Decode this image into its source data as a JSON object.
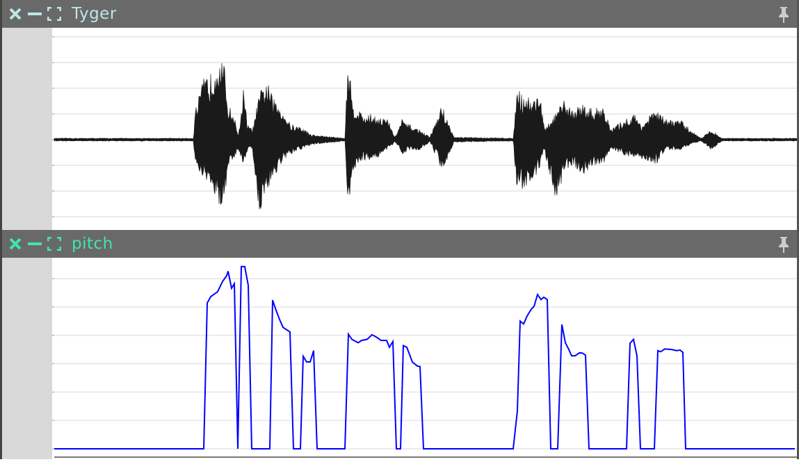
{
  "windows": [
    {
      "title": "Tyger",
      "title_color": "#bfe6e6",
      "icon_color": "#bfe6e6"
    },
    {
      "title": "pitch",
      "title_color": "#3ee8a8",
      "icon_color": "#3ee8a8"
    }
  ],
  "chart_data": [
    {
      "type": "area",
      "title": "Tyger",
      "ylim": [
        -0.17,
        0.215
      ],
      "yticks": [
        "0.2",
        "0.15",
        "0.1",
        "0.05",
        "0",
        "-0.05",
        "-0.1",
        "-0.15"
      ],
      "ytick_values": [
        0.2,
        0.15,
        0.1,
        0.05,
        0,
        -0.05,
        -0.1,
        -0.15
      ],
      "grid": true,
      "color": "#1a1a1a",
      "xlim": [
        0,
        1070
      ],
      "envelope": [
        [
          0,
          0.003,
          -0.003
        ],
        [
          200,
          0.003,
          -0.003
        ],
        [
          203,
          0.06,
          -0.06
        ],
        [
          215,
          0.12,
          -0.08
        ],
        [
          225,
          0.13,
          -0.1
        ],
        [
          237,
          0.18,
          -0.13
        ],
        [
          245,
          0.14,
          -0.12
        ],
        [
          250,
          0.07,
          -0.05
        ],
        [
          258,
          0.05,
          -0.04
        ],
        [
          265,
          0.01,
          -0.02
        ],
        [
          272,
          0.1,
          -0.05
        ],
        [
          278,
          0.03,
          -0.02
        ],
        [
          285,
          0.02,
          -0.02
        ],
        [
          295,
          0.09,
          -0.15
        ],
        [
          305,
          0.12,
          -0.1
        ],
        [
          315,
          0.08,
          -0.08
        ],
        [
          325,
          0.07,
          -0.05
        ],
        [
          340,
          0.03,
          -0.03
        ],
        [
          355,
          0.025,
          -0.02
        ],
        [
          370,
          0.01,
          -0.01
        ],
        [
          418,
          0.003,
          -0.003
        ],
        [
          422,
          0.16,
          -0.15
        ],
        [
          430,
          0.07,
          -0.06
        ],
        [
          445,
          0.05,
          -0.04
        ],
        [
          460,
          0.05,
          -0.04
        ],
        [
          480,
          0.04,
          -0.02
        ],
        [
          490,
          0.005,
          -0.005
        ],
        [
          500,
          0.04,
          -0.03
        ],
        [
          510,
          0.03,
          -0.02
        ],
        [
          525,
          0.02,
          -0.02
        ],
        [
          540,
          0.005,
          -0.005
        ],
        [
          558,
          0.07,
          -0.06
        ],
        [
          565,
          0.04,
          -0.04
        ],
        [
          575,
          0.005,
          -0.005
        ],
        [
          660,
          0.003,
          -0.003
        ],
        [
          665,
          0.1,
          -0.1
        ],
        [
          675,
          0.09,
          -0.1
        ],
        [
          690,
          0.08,
          -0.08
        ],
        [
          698,
          0.1,
          -0.06
        ],
        [
          705,
          0.02,
          -0.02
        ],
        [
          720,
          0.05,
          -0.13
        ],
        [
          735,
          0.08,
          -0.06
        ],
        [
          745,
          0.06,
          -0.05
        ],
        [
          760,
          0.07,
          -0.07
        ],
        [
          775,
          0.06,
          -0.05
        ],
        [
          790,
          0.07,
          -0.05
        ],
        [
          800,
          0.02,
          -0.02
        ],
        [
          820,
          0.04,
          -0.03
        ],
        [
          835,
          0.05,
          -0.04
        ],
        [
          845,
          0.03,
          -0.04
        ],
        [
          865,
          0.06,
          -0.05
        ],
        [
          880,
          0.04,
          -0.02
        ],
        [
          900,
          0.04,
          -0.02
        ],
        [
          915,
          0.02,
          -0.01
        ],
        [
          930,
          0.003,
          -0.003
        ],
        [
          945,
          0.02,
          -0.02
        ],
        [
          960,
          0.003,
          -0.003
        ],
        [
          1070,
          0.003,
          -0.003
        ]
      ]
    },
    {
      "type": "line",
      "title": "pitch",
      "ylim": [
        0,
        335
      ],
      "yticks": [
        "300",
        "250",
        "200",
        "150",
        "100",
        "50",
        "0"
      ],
      "ytick_values": [
        300,
        250,
        200,
        150,
        100,
        50,
        0
      ],
      "grid": true,
      "color": "#0000ff",
      "xlim": [
        0,
        1065
      ],
      "points": [
        [
          0,
          0
        ],
        [
          215,
          0
        ],
        [
          220,
          257
        ],
        [
          225,
          268
        ],
        [
          235,
          277
        ],
        [
          242,
          295
        ],
        [
          248,
          305
        ],
        [
          250,
          313
        ],
        [
          255,
          283
        ],
        [
          259,
          291
        ],
        [
          264,
          0
        ],
        [
          269,
          321
        ],
        [
          274,
          321
        ],
        [
          279,
          288
        ],
        [
          284,
          0
        ],
        [
          310,
          0
        ],
        [
          314,
          262
        ],
        [
          319,
          244
        ],
        [
          324,
          228
        ],
        [
          329,
          214
        ],
        [
          339,
          206
        ],
        [
          344,
          0
        ],
        [
          354,
          0
        ],
        [
          358,
          163
        ],
        [
          363,
          153
        ],
        [
          368,
          153
        ],
        [
          373,
          173
        ],
        [
          378,
          0
        ],
        [
          418,
          0
        ],
        [
          423,
          202
        ],
        [
          428,
          193
        ],
        [
          437,
          187
        ],
        [
          442,
          191
        ],
        [
          450,
          193
        ],
        [
          457,
          201
        ],
        [
          463,
          197
        ],
        [
          470,
          191
        ],
        [
          478,
          191
        ],
        [
          482,
          179
        ],
        [
          487,
          189
        ],
        [
          492,
          0
        ],
        [
          498,
          0
        ],
        [
          502,
          182
        ],
        [
          507,
          179
        ],
        [
          515,
          153
        ],
        [
          522,
          146
        ],
        [
          526,
          145
        ],
        [
          531,
          0
        ],
        [
          660,
          0
        ],
        [
          666,
          67
        ],
        [
          670,
          225
        ],
        [
          675,
          220
        ],
        [
          680,
          234
        ],
        [
          686,
          246
        ],
        [
          690,
          251
        ],
        [
          695,
          272
        ],
        [
          700,
          263
        ],
        [
          704,
          267
        ],
        [
          709,
          263
        ],
        [
          714,
          0
        ],
        [
          724,
          0
        ],
        [
          730,
          219
        ],
        [
          735,
          187
        ],
        [
          740,
          175
        ],
        [
          744,
          164
        ],
        [
          749,
          164
        ],
        [
          755,
          169
        ],
        [
          759,
          169
        ],
        [
          764,
          165
        ],
        [
          769,
          0
        ],
        [
          823,
          0
        ],
        [
          828,
          186
        ],
        [
          833,
          193
        ],
        [
          838,
          164
        ],
        [
          843,
          0
        ],
        [
          863,
          0
        ],
        [
          868,
          173
        ],
        [
          872,
          171
        ],
        [
          878,
          176
        ],
        [
          888,
          175
        ],
        [
          895,
          173
        ],
        [
          900,
          174
        ],
        [
          904,
          170
        ],
        [
          908,
          0
        ],
        [
          1065,
          0
        ]
      ]
    }
  ]
}
